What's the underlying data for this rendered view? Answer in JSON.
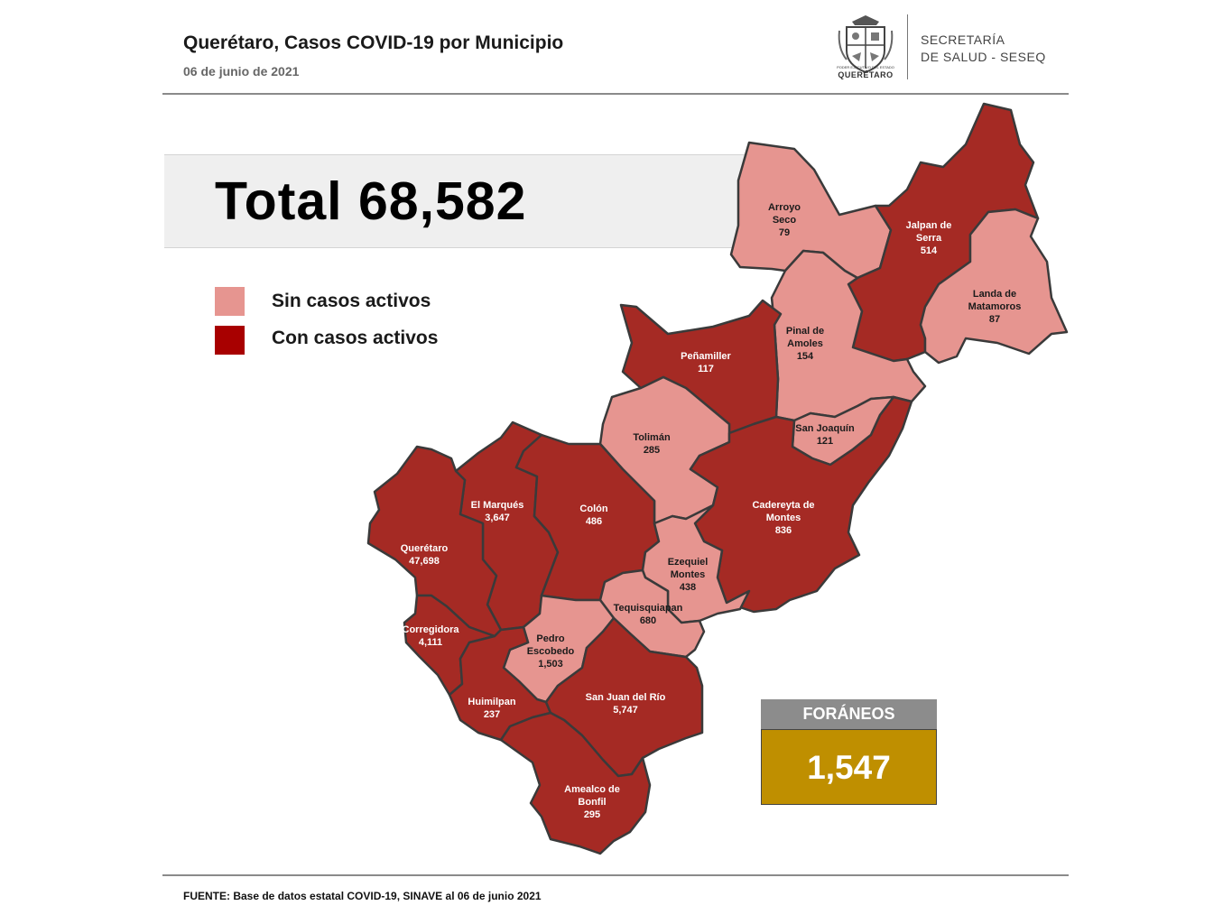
{
  "header": {
    "title": "Querétaro, Casos COVID-19 por Municipio",
    "date": "06 de junio de 2021"
  },
  "logo": {
    "icon": "state-coat-of-arms-icon",
    "caption_small": "PODER EJECUTIVO DEL ESTADO DE",
    "caption": "QUERÉTARO"
  },
  "secretaria": {
    "line1": "SECRETARÍA",
    "line2": "DE SALUD - SESEQ"
  },
  "total": {
    "label": "Total 68,582",
    "value": 68582
  },
  "legend": [
    {
      "label": "Sin casos activos",
      "color": "#e69590"
    },
    {
      "label": "Con casos activos",
      "color": "#a80000"
    }
  ],
  "colors": {
    "active": "#a52a24",
    "inactive": "#e69590",
    "border": "#3a3a3a",
    "foraneos_box": "#bf8f00",
    "foraneos_head": "#8c8c8c"
  },
  "municipalities": [
    {
      "id": "arroyo-seco",
      "name_lines": [
        "Arroyo",
        "Seco"
      ],
      "cases": "79",
      "active": false
    },
    {
      "id": "jalpan-de-serra",
      "name_lines": [
        "Jalpan de",
        "Serra"
      ],
      "cases": "514",
      "active": true
    },
    {
      "id": "landa-de-matamoros",
      "name_lines": [
        "Landa de",
        "Matamoros"
      ],
      "cases": "87",
      "active": false
    },
    {
      "id": "pinal-de-amoles",
      "name_lines": [
        "Pinal de",
        "Amoles"
      ],
      "cases": "154",
      "active": false
    },
    {
      "id": "penamiller",
      "name_lines": [
        "Peñamiller"
      ],
      "cases": "117",
      "active": true
    },
    {
      "id": "san-joaquin",
      "name_lines": [
        "San Joaquín"
      ],
      "cases": "121",
      "active": false
    },
    {
      "id": "toliman",
      "name_lines": [
        "Tolimán"
      ],
      "cases": "285",
      "active": false
    },
    {
      "id": "cadereyta-de-montes",
      "name_lines": [
        "Cadereyta de",
        "Montes"
      ],
      "cases": "836",
      "active": true
    },
    {
      "id": "el-marques",
      "name_lines": [
        "El  Marqués"
      ],
      "cases": "3,647",
      "active": true
    },
    {
      "id": "colon",
      "name_lines": [
        "Colón"
      ],
      "cases": "486",
      "active": true
    },
    {
      "id": "queretaro",
      "name_lines": [
        "Querétaro"
      ],
      "cases": "47,698",
      "active": true
    },
    {
      "id": "ezequiel-montes",
      "name_lines": [
        "Ezequiel",
        "Montes"
      ],
      "cases": "438",
      "active": false
    },
    {
      "id": "tequisquiapan",
      "name_lines": [
        "Tequisquiapan"
      ],
      "cases": "680",
      "active": false
    },
    {
      "id": "corregidora",
      "name_lines": [
        "Corregidora"
      ],
      "cases": "4,111",
      "active": true
    },
    {
      "id": "pedro-escobedo",
      "name_lines": [
        "Pedro",
        "Escobedo"
      ],
      "cases": "1,503",
      "active": false
    },
    {
      "id": "huimilpan",
      "name_lines": [
        "Huimilpan"
      ],
      "cases": "237",
      "active": true
    },
    {
      "id": "san-juan-del-rio",
      "name_lines": [
        "San Juan del Río"
      ],
      "cases": "5,747",
      "active": true
    },
    {
      "id": "amealco-de-bonfil",
      "name_lines": [
        "Amealco de",
        "Bonfil"
      ],
      "cases": "295",
      "active": true
    }
  ],
  "foraneos": {
    "label": "FORÁNEOS",
    "value": "1,547"
  },
  "footer": "FUENTE:  Base de datos estatal COVID-19,  SINAVE  al 06 de junio 2021"
}
